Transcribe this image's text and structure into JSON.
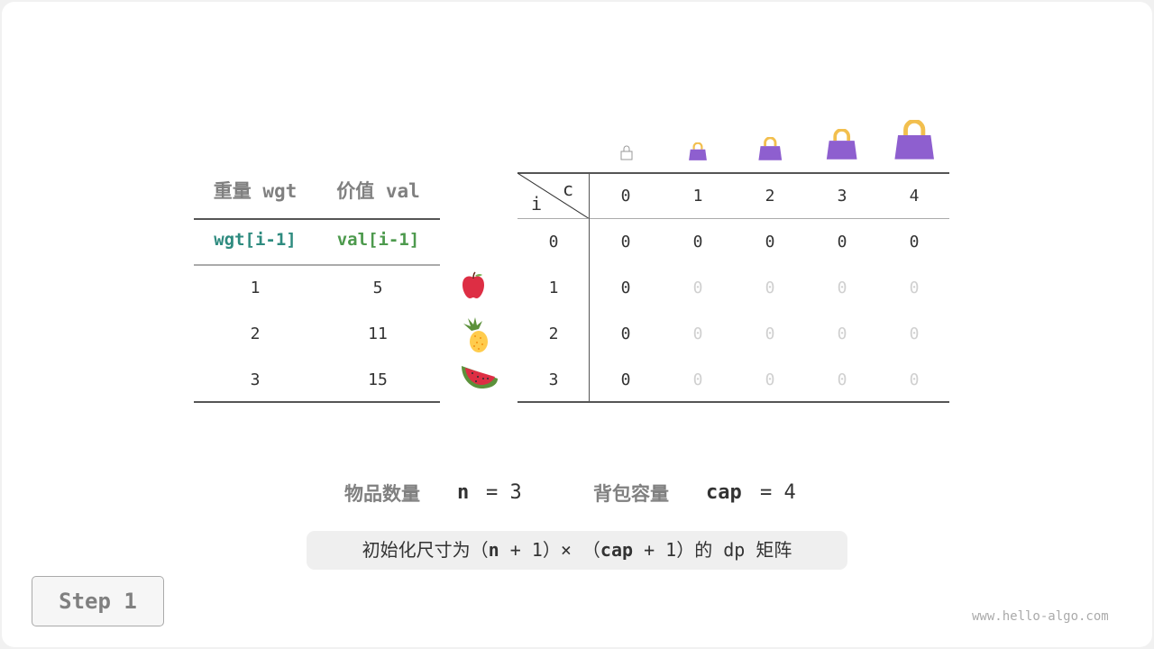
{
  "items_table": {
    "headers": [
      "重量 wgt",
      "价值 val"
    ],
    "subheaders": [
      "wgt[i-1]",
      "val[i-1]"
    ],
    "subheader_colors": [
      "#2e8b7f",
      "#4d9a4d"
    ],
    "rows": [
      {
        "wgt": "1",
        "val": "5",
        "icon": "apple-icon"
      },
      {
        "wgt": "2",
        "val": "11",
        "icon": "pineapple-icon"
      },
      {
        "wgt": "3",
        "val": "15",
        "icon": "watermelon-icon"
      }
    ]
  },
  "dp_table": {
    "corner_row": "i",
    "corner_col": "c",
    "col_headers": [
      "0",
      "1",
      "2",
      "3",
      "4"
    ],
    "row_headers": [
      "0",
      "1",
      "2",
      "3"
    ],
    "cells": [
      [
        "0",
        "0",
        "0",
        "0",
        "0"
      ],
      [
        "0",
        "0",
        "0",
        "0",
        "0"
      ],
      [
        "0",
        "0",
        "0",
        "0",
        "0"
      ],
      [
        "0",
        "0",
        "0",
        "0",
        "0"
      ]
    ],
    "column_icons": "bag-icon",
    "bag_color": "#8e5fcf",
    "handle_color": "#f2bf4e"
  },
  "summary": {
    "n_label": "物品数量",
    "n_var": "n",
    "n_eq": "= 3",
    "cap_label": "背包容量",
    "cap_var": "cap",
    "cap_eq": "= 4"
  },
  "caption": {
    "pre": "初始化尺寸为（",
    "n": "n",
    "mid1": " + 1）× （",
    "cap": "cap",
    "mid2": " + 1）的 dp 矩阵"
  },
  "step_button": "Step 1",
  "watermark": "www.hello-algo.com"
}
